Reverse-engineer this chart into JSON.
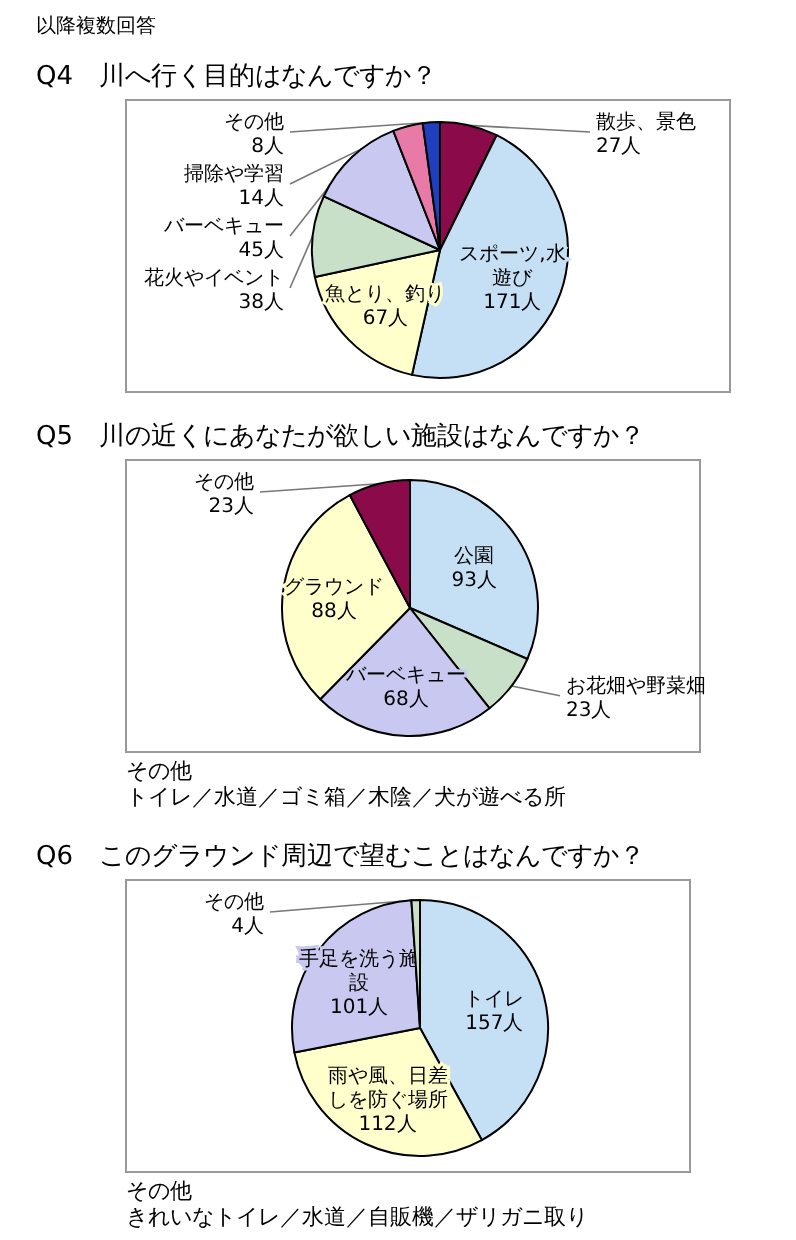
{
  "chart_data": [
    {
      "type": "pie",
      "title": "Q4　川へ行く目的はなんですか？",
      "annotations": [
        "以降複数回答"
      ],
      "categories": [
        "散歩、景色",
        "スポーツ,水遊び",
        "魚とり、釣り",
        "花火やイベント",
        "バーベキュー",
        "掃除や学習",
        "その他"
      ],
      "values": [
        27,
        171,
        67,
        38,
        45,
        14,
        8
      ],
      "value_labels": [
        "27人",
        "171人",
        "67人",
        "38人",
        "45人",
        "14人",
        "8人"
      ],
      "colors": [
        "#8b0a4a",
        "#c5dff5",
        "#ffffcc",
        "#c8e0c8",
        "#c8c8f0",
        "#e87aa8",
        "#1f3fbf"
      ]
    },
    {
      "type": "pie",
      "title": "Q5　川の近くにあなたが欲しい施設はなんですか？",
      "annotations": [
        "その他",
        "トイレ／水道／ゴミ箱／木陰／犬が遊べる所"
      ],
      "categories": [
        "公園",
        "お花畑や野菜畑",
        "バーベキュー",
        "グラウンド",
        "その他"
      ],
      "values": [
        93,
        23,
        68,
        88,
        23
      ],
      "value_labels": [
        "93人",
        "23人",
        "68人",
        "88人",
        "23人"
      ],
      "colors": [
        "#c5dff5",
        "#c8e0c8",
        "#c8c8f0",
        "#ffffcc",
        "#8b0a4a"
      ]
    },
    {
      "type": "pie",
      "title": "Q6　このグラウンド周辺で望むことはなんですか？",
      "annotations": [
        "その他",
        "きれいなトイレ／水道／自販機／ザリガニ取り"
      ],
      "categories": [
        "トイレ",
        "雨や風、日差しを防ぐ場所",
        "手足を洗う施設",
        "その他"
      ],
      "values": [
        157,
        112,
        101,
        4
      ],
      "value_labels": [
        "157人",
        "112人",
        "101人",
        "4人"
      ],
      "colors": [
        "#c5dff5",
        "#ffffcc",
        "#c8c8f0",
        "#c8e0c8"
      ]
    }
  ]
}
